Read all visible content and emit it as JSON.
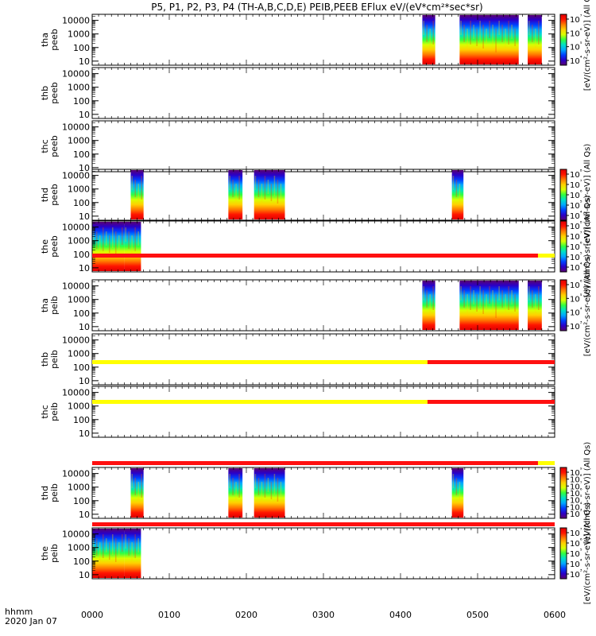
{
  "title": "P5, P1, P2, P3, P4 (TH-A,B,C,D,E) PEIB,PEEB EFlux eV/(eV*cm²*sec*sr)",
  "colors": {
    "ramp": [
      "#5a0070",
      "#2a00c8",
      "#0040ff",
      "#00a8ff",
      "#00e0c8",
      "#30ff40",
      "#d8ff00",
      "#ffd000",
      "#ff7a00",
      "#ff1400",
      "#e00000"
    ],
    "mode_red": "#ff1010",
    "mode_yellow": "#ffff00"
  },
  "footer": {
    "hhmm": "hhmm",
    "date": "2020 Jan 07"
  },
  "chart_data": {
    "type": "heatmap",
    "x_ticks": [
      "0000",
      "0100",
      "0200",
      "0300",
      "0400",
      "0500",
      "0600"
    ],
    "xlim": [
      "00:00",
      "06:00"
    ],
    "y_scale": "log",
    "y_ticks": [
      "10",
      "100",
      "1000",
      "10000"
    ],
    "panels": [
      {
        "label": [
          "tha",
          "peeb"
        ],
        "blocks": [
          [
            "04:17",
            "04:27"
          ],
          [
            "04:46",
            "05:32"
          ],
          [
            "05:39",
            "05:50"
          ]
        ],
        "colorbar": {
          "ticks": [
            "10⁷",
            "10⁶",
            "10⁵",
            "10⁴"
          ],
          "label": "[eV/(cm²-s-sr-eV)] (All Qs)"
        }
      },
      {
        "label": [
          "thb",
          "peeb"
        ],
        "blocks": []
      },
      {
        "label": [
          "thc",
          "peeb"
        ],
        "blocks": []
      },
      {
        "label": [
          "thd",
          "peeb"
        ],
        "blocks": [
          [
            "00:30",
            "00:40"
          ],
          [
            "01:46",
            "01:57"
          ],
          [
            "02:06",
            "02:30"
          ],
          [
            "04:40",
            "04:49"
          ]
        ],
        "colorbar": {
          "ticks": [
            "10⁸",
            "10⁷",
            "10⁶",
            "10⁵",
            "10⁴"
          ],
          "label": "[eV/(cm²-s-sr-eV)] (All Qs)"
        }
      },
      {
        "label": [
          "the",
          "peeb"
        ],
        "blocks": [
          [
            "00:00",
            "00:25"
          ],
          [
            "00:25",
            "00:38"
          ]
        ],
        "colorbar": {
          "ticks": [
            "10⁸",
            "10⁷",
            "10⁶",
            "10⁵",
            "10⁴"
          ],
          "label": "[eV/(cm²-s-sr-eV)] (All Qs)"
        }
      },
      {
        "label": [
          "tha",
          "peib"
        ],
        "blocks": [
          [
            "04:17",
            "04:27"
          ],
          [
            "04:46",
            "05:32"
          ],
          [
            "05:39",
            "05:50"
          ]
        ],
        "colorbar": {
          "ticks": [
            "10⁶",
            "10⁵",
            "10⁴",
            "10³"
          ],
          "label": "[eV/(cm²-s-sr-eV)] (All Qs)"
        }
      },
      {
        "label": [
          "thb",
          "peib"
        ],
        "blocks": []
      },
      {
        "label": [
          "thc",
          "peib"
        ],
        "blocks": []
      },
      {
        "label": [
          "thd",
          "peib"
        ],
        "blocks": [
          [
            "00:30",
            "00:40"
          ],
          [
            "01:46",
            "01:57"
          ],
          [
            "02:06",
            "02:30"
          ],
          [
            "04:40",
            "04:49"
          ]
        ],
        "colorbar": {
          "ticks": [
            "10⁹",
            "10⁸",
            "10⁷",
            "10⁶",
            "10⁵",
            "10⁴",
            "10³"
          ],
          "label": "[eV/(cm²-s-sr-eV)] (All Qs)"
        }
      },
      {
        "label": [
          "the",
          "peib"
        ],
        "blocks": [
          [
            "00:00",
            "00:25"
          ],
          [
            "00:25",
            "00:38"
          ]
        ],
        "colorbar": {
          "ticks": [
            "10⁷",
            "10⁶",
            "10⁵",
            "10⁴",
            "10³"
          ],
          "label": "[eV/(cm²-s-sr-eV)] (All Qs)"
        }
      }
    ],
    "mode_bars": [
      {
        "segments": [
          [
            "00:00",
            "05:47",
            "red"
          ],
          [
            "05:47",
            "06:00",
            "yellow"
          ]
        ]
      },
      {
        "segments": [
          [
            "00:00",
            "04:21",
            "yellow"
          ],
          [
            "04:21",
            "06:00",
            "red"
          ]
        ]
      },
      {
        "segments": [
          [
            "00:00",
            "04:21",
            "yellow"
          ],
          [
            "04:21",
            "06:00",
            "red"
          ]
        ]
      },
      {
        "segments": [
          [
            "00:00",
            "05:47",
            "red"
          ],
          [
            "05:47",
            "06:00",
            "yellow"
          ]
        ]
      },
      {
        "segments": [
          [
            "00:00",
            "06:00",
            "red"
          ]
        ]
      }
    ]
  }
}
